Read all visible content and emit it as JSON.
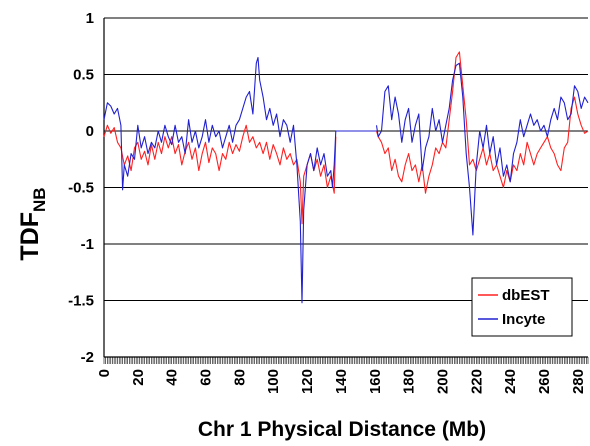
{
  "chart_data": {
    "type": "line",
    "xlabel": "Chr 1 Physical Distance (Mb)",
    "ylabel_main": "TDF",
    "ylabel_sub": "NB",
    "xlim": [
      0,
      286
    ],
    "ylim": [
      -2,
      1
    ],
    "x_ticks": [
      "0",
      "20",
      "40",
      "60",
      "80",
      "100",
      "120",
      "140",
      "160",
      "180",
      "200",
      "220",
      "240",
      "260",
      "280"
    ],
    "x_tick_values": [
      0,
      20,
      40,
      60,
      80,
      100,
      120,
      140,
      160,
      180,
      200,
      220,
      240,
      260,
      280
    ],
    "y_ticks": [
      "1",
      "0.5",
      "0",
      "-0.5",
      "-1",
      "-1.5",
      "-2"
    ],
    "y_tick_values": [
      1,
      0.5,
      0,
      -0.5,
      -1,
      -1.5,
      -2
    ],
    "grid": "horizontal",
    "legend_position": "bottom-right",
    "series": [
      {
        "name": "dbEST",
        "color": "#ff2020",
        "segments": [
          [
            [
              0,
              -0.05
            ],
            [
              2,
              0.05
            ],
            [
              4,
              -0.02
            ],
            [
              6,
              0.03
            ],
            [
              8,
              -0.1
            ],
            [
              10,
              -0.15
            ],
            [
              12,
              -0.3
            ],
            [
              14,
              -0.22
            ],
            [
              16,
              -0.35
            ],
            [
              18,
              -0.15
            ],
            [
              20,
              -0.1
            ],
            [
              22,
              -0.25
            ],
            [
              24,
              -0.18
            ],
            [
              26,
              -0.3
            ],
            [
              28,
              -0.12
            ],
            [
              30,
              -0.25
            ],
            [
              32,
              -0.1
            ],
            [
              34,
              -0.2
            ],
            [
              36,
              -0.05
            ],
            [
              38,
              -0.15
            ],
            [
              40,
              -0.05
            ],
            [
              42,
              -0.2
            ],
            [
              44,
              -0.12
            ],
            [
              46,
              -0.3
            ],
            [
              48,
              -0.18
            ],
            [
              50,
              -0.1
            ],
            [
              52,
              -0.25
            ],
            [
              54,
              -0.15
            ],
            [
              56,
              -0.35
            ],
            [
              58,
              -0.2
            ],
            [
              60,
              -0.1
            ],
            [
              62,
              -0.28
            ],
            [
              64,
              -0.15
            ],
            [
              66,
              -0.2
            ],
            [
              68,
              -0.35
            ],
            [
              70,
              -0.2
            ],
            [
              72,
              -0.25
            ],
            [
              74,
              -0.1
            ],
            [
              76,
              -0.2
            ],
            [
              78,
              -0.12
            ],
            [
              80,
              -0.18
            ],
            [
              82,
              -0.05
            ],
            [
              84,
              0.05
            ],
            [
              86,
              -0.1
            ],
            [
              88,
              -0.05
            ],
            [
              90,
              -0.15
            ],
            [
              92,
              -0.1
            ],
            [
              94,
              -0.2
            ],
            [
              96,
              -0.1
            ],
            [
              98,
              -0.25
            ],
            [
              100,
              -0.12
            ],
            [
              102,
              -0.2
            ],
            [
              104,
              -0.3
            ],
            [
              106,
              -0.15
            ],
            [
              108,
              -0.25
            ],
            [
              110,
              -0.2
            ],
            [
              112,
              -0.3
            ],
            [
              114,
              -0.25
            ],
            [
              116,
              -0.45
            ],
            [
              117,
              -0.82
            ],
            [
              118,
              -0.4
            ],
            [
              120,
              -0.3
            ],
            [
              122,
              -0.2
            ],
            [
              124,
              -0.35
            ],
            [
              126,
              -0.25
            ],
            [
              128,
              -0.4
            ],
            [
              130,
              -0.3
            ],
            [
              132,
              -0.5
            ],
            [
              134,
              -0.4
            ],
            [
              136,
              -0.55
            ],
            [
              137,
              -0.05
            ]
          ],
          [
            [
              161,
              0.0
            ],
            [
              162,
              -0.05
            ],
            [
              164,
              -0.1
            ],
            [
              166,
              -0.2
            ],
            [
              168,
              -0.15
            ],
            [
              170,
              -0.35
            ],
            [
              172,
              -0.25
            ],
            [
              174,
              -0.4
            ],
            [
              176,
              -0.45
            ],
            [
              178,
              -0.3
            ],
            [
              180,
              -0.2
            ],
            [
              182,
              -0.35
            ],
            [
              184,
              -0.3
            ],
            [
              186,
              -0.45
            ],
            [
              188,
              -0.3
            ],
            [
              190,
              -0.55
            ],
            [
              192,
              -0.4
            ],
            [
              194,
              -0.3
            ],
            [
              196,
              -0.15
            ],
            [
              198,
              -0.2
            ],
            [
              200,
              -0.1
            ],
            [
              202,
              -0.15
            ],
            [
              204,
              0.1
            ],
            [
              206,
              0.35
            ],
            [
              208,
              0.65
            ],
            [
              210,
              0.7
            ],
            [
              212,
              0.4
            ],
            [
              214,
              0.1
            ],
            [
              216,
              -0.3
            ],
            [
              218,
              -0.25
            ],
            [
              220,
              -0.35
            ],
            [
              222,
              -0.25
            ],
            [
              224,
              -0.15
            ],
            [
              226,
              -0.3
            ],
            [
              228,
              -0.2
            ],
            [
              230,
              -0.35
            ],
            [
              232,
              -0.3
            ],
            [
              234,
              -0.4
            ],
            [
              236,
              -0.5
            ],
            [
              238,
              -0.35
            ],
            [
              240,
              -0.45
            ],
            [
              242,
              -0.3
            ],
            [
              244,
              -0.35
            ],
            [
              246,
              -0.2
            ],
            [
              248,
              -0.3
            ],
            [
              250,
              -0.1
            ],
            [
              252,
              -0.2
            ],
            [
              254,
              -0.3
            ],
            [
              256,
              -0.2
            ],
            [
              258,
              -0.15
            ],
            [
              260,
              -0.1
            ],
            [
              262,
              -0.05
            ],
            [
              264,
              -0.15
            ],
            [
              266,
              -0.2
            ],
            [
              268,
              -0.3
            ],
            [
              270,
              -0.35
            ],
            [
              272,
              -0.15
            ],
            [
              274,
              -0.1
            ],
            [
              276,
              0.2
            ],
            [
              278,
              0.3
            ],
            [
              280,
              0.15
            ],
            [
              282,
              0.05
            ],
            [
              284,
              -0.02
            ],
            [
              286,
              0.0
            ]
          ]
        ]
      },
      {
        "name": "Incyte",
        "color": "#2020d0",
        "segments": [
          [
            [
              0,
              0.1
            ],
            [
              2,
              0.25
            ],
            [
              4,
              0.22
            ],
            [
              6,
              0.15
            ],
            [
              8,
              0.2
            ],
            [
              10,
              0.05
            ],
            [
              11,
              -0.52
            ],
            [
              12,
              -0.3
            ],
            [
              14,
              -0.4
            ],
            [
              16,
              -0.2
            ],
            [
              18,
              -0.25
            ],
            [
              20,
              0.05
            ],
            [
              22,
              -0.15
            ],
            [
              24,
              -0.05
            ],
            [
              26,
              -0.2
            ],
            [
              28,
              -0.1
            ],
            [
              30,
              -0.15
            ],
            [
              32,
              0.0
            ],
            [
              34,
              -0.1
            ],
            [
              36,
              0.05
            ],
            [
              38,
              -0.05
            ],
            [
              40,
              -0.12
            ],
            [
              42,
              0.05
            ],
            [
              44,
              -0.1
            ],
            [
              46,
              -0.05
            ],
            [
              48,
              -0.2
            ],
            [
              50,
              0.1
            ],
            [
              52,
              -0.1
            ],
            [
              54,
              0.0
            ],
            [
              56,
              -0.15
            ],
            [
              58,
              -0.05
            ],
            [
              60,
              0.1
            ],
            [
              62,
              -0.1
            ],
            [
              64,
              0.05
            ],
            [
              66,
              -0.05
            ],
            [
              68,
              0.0
            ],
            [
              70,
              -0.15
            ],
            [
              72,
              -0.05
            ],
            [
              74,
              0.05
            ],
            [
              76,
              -0.1
            ],
            [
              78,
              0.05
            ],
            [
              80,
              0.1
            ],
            [
              82,
              0.2
            ],
            [
              84,
              0.3
            ],
            [
              86,
              0.35
            ],
            [
              88,
              0.15
            ],
            [
              90,
              0.6
            ],
            [
              91,
              0.65
            ],
            [
              92,
              0.45
            ],
            [
              94,
              0.3
            ],
            [
              96,
              0.1
            ],
            [
              98,
              0.2
            ],
            [
              100,
              0.05
            ],
            [
              102,
              0.15
            ],
            [
              104,
              -0.05
            ],
            [
              106,
              0.1
            ],
            [
              108,
              0.05
            ],
            [
              110,
              -0.1
            ],
            [
              112,
              0.05
            ],
            [
              114,
              -0.3
            ],
            [
              116,
              -0.8
            ],
            [
              117,
              -1.52
            ],
            [
              118,
              -0.7
            ],
            [
              120,
              -0.3
            ],
            [
              122,
              -0.2
            ],
            [
              124,
              -0.35
            ],
            [
              126,
              -0.15
            ],
            [
              128,
              -0.3
            ],
            [
              130,
              -0.2
            ],
            [
              132,
              -0.4
            ],
            [
              134,
              -0.35
            ],
            [
              135,
              -0.5
            ],
            [
              136,
              -0.3
            ],
            [
              137,
              0.0
            ]
          ],
          [
            [
              137,
              0.0
            ],
            [
              161,
              0.0
            ]
          ],
          [
            [
              161,
              0.05
            ],
            [
              162,
              -0.05
            ],
            [
              164,
              0.0
            ],
            [
              166,
              0.35
            ],
            [
              168,
              0.4
            ],
            [
              170,
              0.1
            ],
            [
              172,
              0.3
            ],
            [
              174,
              0.15
            ],
            [
              176,
              -0.1
            ],
            [
              178,
              0.1
            ],
            [
              180,
              0.2
            ],
            [
              182,
              -0.1
            ],
            [
              184,
              0.05
            ],
            [
              186,
              0.15
            ],
            [
              188,
              -0.35
            ],
            [
              190,
              -0.15
            ],
            [
              192,
              -0.05
            ],
            [
              194,
              0.2
            ],
            [
              196,
              0.0
            ],
            [
              198,
              0.1
            ],
            [
              200,
              -0.1
            ],
            [
              202,
              0.05
            ],
            [
              204,
              0.2
            ],
            [
              206,
              0.45
            ],
            [
              208,
              0.58
            ],
            [
              210,
              0.6
            ],
            [
              212,
              0.3
            ],
            [
              214,
              -0.2
            ],
            [
              216,
              -0.5
            ],
            [
              218,
              -0.92
            ],
            [
              219,
              -0.6
            ],
            [
              220,
              -0.3
            ],
            [
              222,
              0.0
            ],
            [
              224,
              -0.15
            ],
            [
              226,
              0.05
            ],
            [
              228,
              -0.2
            ],
            [
              230,
              -0.05
            ],
            [
              232,
              -0.3
            ],
            [
              234,
              -0.15
            ],
            [
              236,
              -0.4
            ],
            [
              238,
              -0.3
            ],
            [
              240,
              -0.45
            ],
            [
              242,
              -0.2
            ],
            [
              244,
              -0.1
            ],
            [
              246,
              0.1
            ],
            [
              248,
              -0.05
            ],
            [
              250,
              0.05
            ],
            [
              252,
              0.15
            ],
            [
              254,
              0.05
            ],
            [
              256,
              0.1
            ],
            [
              258,
              0.0
            ],
            [
              260,
              0.05
            ],
            [
              262,
              -0.05
            ],
            [
              264,
              0.1
            ],
            [
              266,
              0.2
            ],
            [
              268,
              0.1
            ],
            [
              270,
              0.3
            ],
            [
              272,
              0.25
            ],
            [
              274,
              0.1
            ],
            [
              276,
              0.15
            ],
            [
              278,
              0.4
            ],
            [
              280,
              0.35
            ],
            [
              282,
              0.2
            ],
            [
              284,
              0.3
            ],
            [
              286,
              0.25
            ]
          ]
        ]
      }
    ]
  }
}
